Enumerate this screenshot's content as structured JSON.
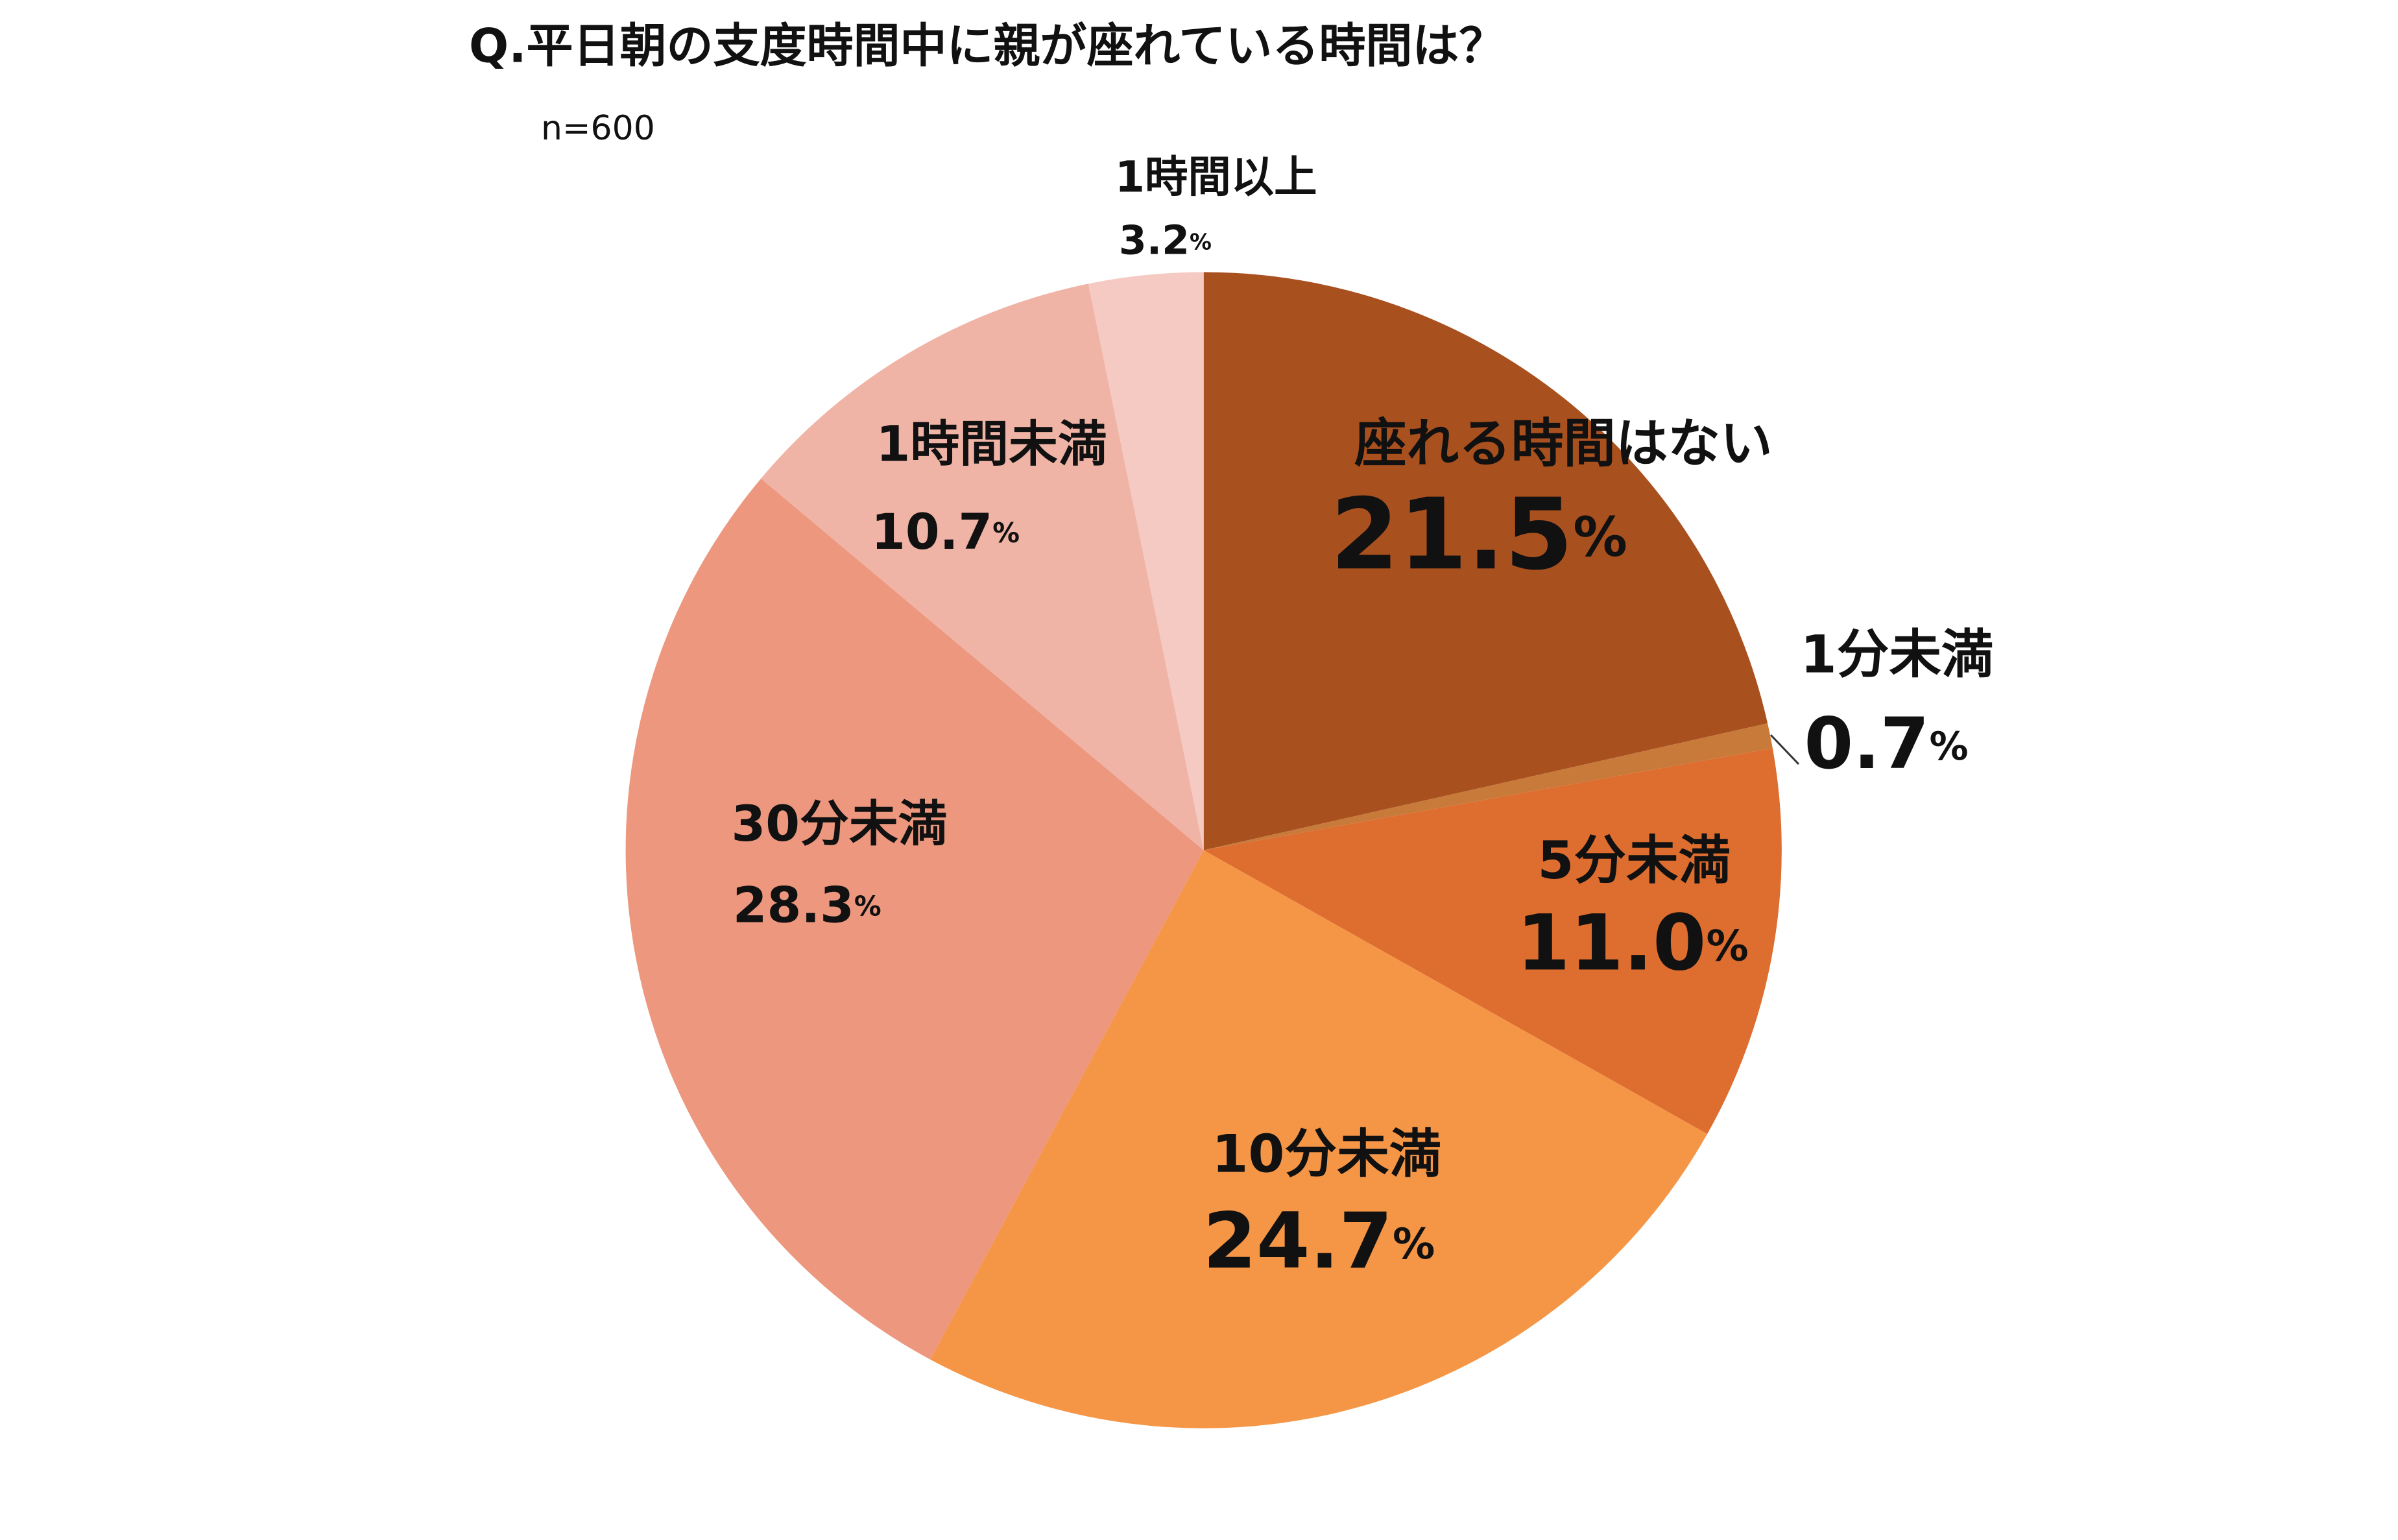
{
  "chart_data": {
    "type": "pie",
    "title": "Q.平日朝の支度時間中に親が座れている時間は？",
    "subtitle": "n=600",
    "categories": [
      "座れる時間はない",
      "1分未満",
      "5分未満",
      "10分未満",
      "30分未満",
      "1時間未満",
      "1時間以上"
    ],
    "values": [
      21.5,
      0.7,
      11.0,
      24.7,
      28.3,
      10.7,
      3.2
    ],
    "value_labels": [
      "21.5%",
      "0.7%",
      "11.0%",
      "24.7%",
      "28.3%",
      "10.7%",
      "3.2%"
    ],
    "colors": [
      "#a9501f",
      "#c87a3a",
      "#de6d30",
      "#f59647",
      "#ec977e",
      "#f0b4a6",
      "#f5cac2"
    ]
  }
}
